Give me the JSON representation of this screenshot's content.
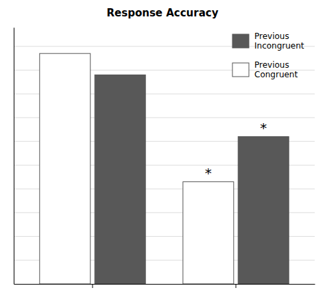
{
  "chart_data": {
    "type": "bar",
    "title": "Response Accuracy",
    "categories": [
      null,
      null
    ],
    "series": [
      {
        "name": "Previous\nCongruent",
        "color": "#ffffff",
        "values": [
          0.97,
          0.43
        ]
      },
      {
        "name": "Previous\nIncongruent",
        "color": "#585858",
        "values": [
          0.88,
          0.62
        ]
      }
    ],
    "ylim": [
      0,
      1.08
    ],
    "yticks": [
      0.1,
      0.2,
      0.3,
      0.4,
      0.5,
      0.6,
      0.7,
      0.8,
      0.9,
      1.0
    ],
    "grid": true,
    "tick_labels": false,
    "legend": "upper right",
    "annotations": [
      {
        "text": "*",
        "series": "Previous\nCongruent",
        "category": 1,
        "y": 0.48
      },
      {
        "text": "*",
        "series": "Previous\nIncongruent",
        "category": 1,
        "y": 0.67
      }
    ]
  }
}
